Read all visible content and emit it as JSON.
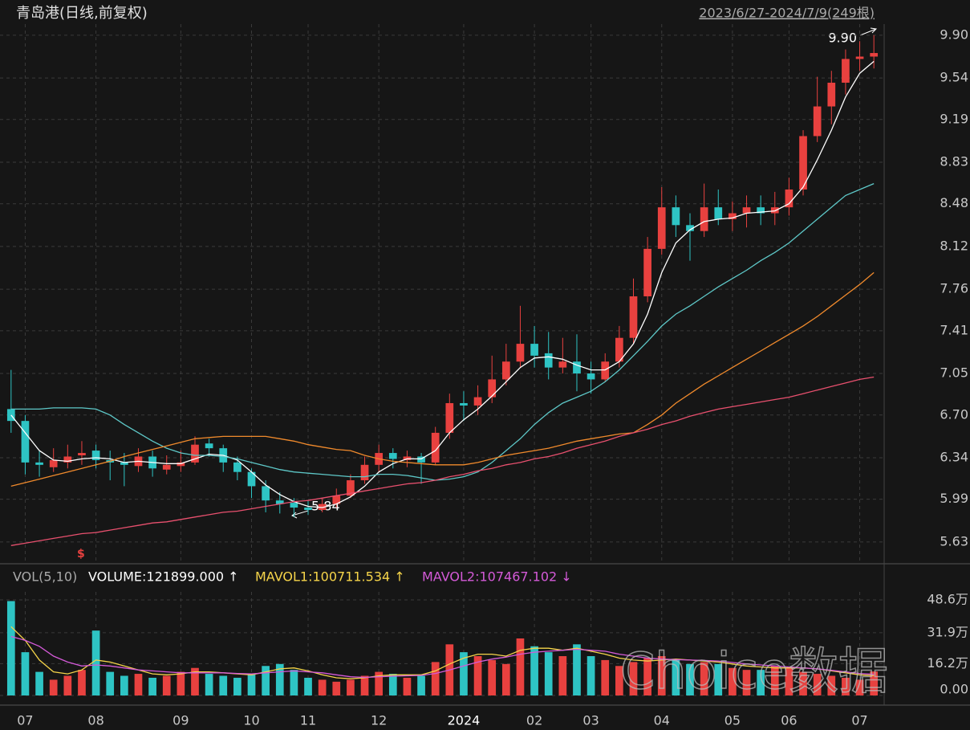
{
  "chart_data": [
    {
      "type": "candlestick",
      "title": "青岛港(日线,前复权)",
      "subtitle": "2023/6/27-2024/7/9(249根)",
      "categories": [
        null,
        "07",
        null,
        null,
        null,
        null,
        "08",
        null,
        null,
        null,
        null,
        null,
        "09",
        null,
        null,
        null,
        null,
        "10",
        null,
        null,
        null,
        "11",
        null,
        null,
        null,
        null,
        "12",
        null,
        null,
        null,
        null,
        null,
        "2024",
        null,
        null,
        null,
        null,
        "02",
        null,
        null,
        null,
        "03",
        null,
        null,
        null,
        null,
        "04",
        null,
        null,
        null,
        null,
        "05",
        null,
        null,
        null,
        "06",
        null,
        null,
        null,
        null,
        "07",
        null
      ],
      "open": [
        6.75,
        6.65,
        6.3,
        6.26,
        6.3,
        6.36,
        6.4,
        6.32,
        6.3,
        6.27,
        6.35,
        6.24,
        6.27,
        6.3,
        6.46,
        6.42,
        6.3,
        6.22,
        6.1,
        5.98,
        5.96,
        5.92,
        5.9,
        5.95,
        6.02,
        6.15,
        6.28,
        6.38,
        6.32,
        6.35,
        6.3,
        6.55,
        6.8,
        6.78,
        6.85,
        7.0,
        7.15,
        7.3,
        7.22,
        7.1,
        7.15,
        7.05,
        7.0,
        7.15,
        7.35,
        7.7,
        8.1,
        8.45,
        8.3,
        8.25,
        8.45,
        8.35,
        8.4,
        8.45,
        8.4,
        8.45,
        8.6,
        9.05,
        9.3,
        9.5,
        9.7,
        9.72
      ],
      "high": [
        7.08,
        6.7,
        6.4,
        6.42,
        6.45,
        6.48,
        6.45,
        6.4,
        6.38,
        6.42,
        6.4,
        6.36,
        6.4,
        6.52,
        6.5,
        6.45,
        6.35,
        6.25,
        6.15,
        6.05,
        6.0,
        5.98,
        6.0,
        6.08,
        6.2,
        6.35,
        6.45,
        6.42,
        6.4,
        6.38,
        6.6,
        6.88,
        6.9,
        6.95,
        7.2,
        7.3,
        7.62,
        7.45,
        7.4,
        7.35,
        7.38,
        7.15,
        7.22,
        7.45,
        7.85,
        8.2,
        8.62,
        8.55,
        8.4,
        8.65,
        8.6,
        8.5,
        8.55,
        8.55,
        8.58,
        8.7,
        9.1,
        9.55,
        9.6,
        9.78,
        9.85,
        9.9
      ],
      "low": [
        6.55,
        6.2,
        6.18,
        6.22,
        6.25,
        6.28,
        6.25,
        6.15,
        6.1,
        6.22,
        6.18,
        6.2,
        6.22,
        6.28,
        6.35,
        6.22,
        6.15,
        6.0,
        5.88,
        5.87,
        5.84,
        5.86,
        5.88,
        5.92,
        6.0,
        6.12,
        6.22,
        6.25,
        6.26,
        6.12,
        6.28,
        6.5,
        6.65,
        6.7,
        6.8,
        6.95,
        7.1,
        7.1,
        7.0,
        7.05,
        6.9,
        6.88,
        6.98,
        7.1,
        7.3,
        7.65,
        8.05,
        8.2,
        8.0,
        8.2,
        8.3,
        8.25,
        8.28,
        8.3,
        8.3,
        8.38,
        8.55,
        9.0,
        9.15,
        9.4,
        9.6,
        9.62
      ],
      "close": [
        6.65,
        6.3,
        6.28,
        6.32,
        6.35,
        6.38,
        6.32,
        6.3,
        6.28,
        6.35,
        6.25,
        6.28,
        6.3,
        6.45,
        6.42,
        6.3,
        6.22,
        6.1,
        5.98,
        5.95,
        5.92,
        5.9,
        5.95,
        6.02,
        6.15,
        6.28,
        6.38,
        6.33,
        6.35,
        6.3,
        6.55,
        6.8,
        6.78,
        6.85,
        7.0,
        7.15,
        7.3,
        7.2,
        7.1,
        7.15,
        7.05,
        7.0,
        7.15,
        7.35,
        7.7,
        8.1,
        8.45,
        8.3,
        8.25,
        8.45,
        8.35,
        8.4,
        8.45,
        8.4,
        8.45,
        8.6,
        9.05,
        9.3,
        9.5,
        9.7,
        9.72,
        9.75
      ],
      "up_color": "#e8413f",
      "down_color": "#2ec4c4",
      "ylim": [
        5.46,
        9.96
      ],
      "yticks": [
        {
          "value": 9.9,
          "label": "9.90"
        },
        9.54,
        9.19,
        8.83,
        8.48,
        8.12,
        7.76,
        7.41,
        7.05,
        {
          "value": 6.7,
          "label": "6.70"
        },
        6.34,
        5.99,
        5.63
      ],
      "grid": true,
      "ma_lines": [
        {
          "color": "#ffffff",
          "values": [
            6.7,
            6.55,
            6.4,
            6.32,
            6.31,
            6.33,
            6.34,
            6.33,
            6.3,
            6.31,
            6.3,
            6.29,
            6.29,
            6.33,
            6.37,
            6.36,
            6.32,
            6.22,
            6.11,
            6.03,
            5.97,
            5.93,
            5.92,
            5.95,
            6.01,
            6.1,
            6.22,
            6.29,
            6.33,
            6.33,
            6.4,
            6.55,
            6.66,
            6.75,
            6.86,
            6.98,
            7.1,
            7.18,
            7.19,
            7.17,
            7.12,
            7.08,
            7.08,
            7.15,
            7.3,
            7.55,
            7.9,
            8.15,
            8.26,
            8.33,
            8.35,
            8.36,
            8.4,
            8.41,
            8.42,
            8.48,
            8.62,
            8.85,
            9.1,
            9.38,
            9.58,
            9.68
          ]
        },
        {
          "color": "#5ec8c8",
          "values": [
            6.75,
            6.75,
            6.75,
            6.76,
            6.76,
            6.76,
            6.75,
            6.7,
            6.62,
            6.55,
            6.48,
            6.42,
            6.38,
            6.36,
            6.36,
            6.35,
            6.33,
            6.3,
            6.27,
            6.24,
            6.22,
            6.21,
            6.2,
            6.19,
            6.18,
            6.18,
            6.2,
            6.2,
            6.19,
            6.17,
            6.15,
            6.16,
            6.18,
            6.22,
            6.3,
            6.4,
            6.5,
            6.62,
            6.72,
            6.8,
            6.85,
            6.9,
            6.98,
            7.08,
            7.2,
            7.32,
            7.45,
            7.55,
            7.62,
            7.7,
            7.78,
            7.85,
            7.92,
            8.0,
            8.07,
            8.15,
            8.25,
            8.35,
            8.45,
            8.55,
            8.6,
            8.65
          ]
        },
        {
          "color": "#f08a2c",
          "values": [
            6.1,
            6.13,
            6.16,
            6.19,
            6.22,
            6.25,
            6.28,
            6.31,
            6.35,
            6.38,
            6.41,
            6.44,
            6.47,
            6.5,
            6.51,
            6.52,
            6.52,
            6.52,
            6.52,
            6.5,
            6.48,
            6.45,
            6.43,
            6.41,
            6.4,
            6.36,
            6.33,
            6.31,
            6.3,
            6.29,
            6.28,
            6.28,
            6.28,
            6.3,
            6.33,
            6.36,
            6.38,
            6.4,
            6.42,
            6.45,
            6.48,
            6.5,
            6.52,
            6.54,
            6.55,
            6.62,
            6.7,
            6.8,
            6.88,
            6.96,
            7.03,
            7.1,
            7.17,
            7.24,
            7.31,
            7.38,
            7.45,
            7.53,
            7.62,
            7.71,
            7.8,
            7.9
          ]
        },
        {
          "color": "#e8506e",
          "values": [
            5.6,
            5.62,
            5.64,
            5.66,
            5.68,
            5.7,
            5.71,
            5.73,
            5.75,
            5.77,
            5.79,
            5.8,
            5.82,
            5.84,
            5.86,
            5.88,
            5.89,
            5.91,
            5.93,
            5.95,
            5.97,
            5.98,
            6.0,
            6.02,
            6.04,
            6.06,
            6.08,
            6.1,
            6.12,
            6.13,
            6.15,
            6.18,
            6.2,
            6.23,
            6.25,
            6.28,
            6.3,
            6.33,
            6.35,
            6.38,
            6.42,
            6.45,
            6.48,
            6.52,
            6.55,
            6.58,
            6.62,
            6.65,
            6.69,
            6.72,
            6.75,
            6.77,
            6.79,
            6.81,
            6.83,
            6.85,
            6.88,
            6.91,
            6.94,
            6.97,
            7.0,
            7.02
          ]
        }
      ],
      "high_label": "9.90",
      "low_label": "5.84",
      "watermark": "Choice数据"
    },
    {
      "type": "bar",
      "title": "VOL(5,10)",
      "header": [
        "VOLUME:121899.000 ↑",
        "MAVOL1:100711.534 ↑",
        "MAVOL2:107467.102 ↓"
      ],
      "values": [
        480000,
        220000,
        120000,
        80000,
        100000,
        130000,
        330000,
        120000,
        100000,
        110000,
        90000,
        100000,
        120000,
        140000,
        110000,
        100000,
        90000,
        110000,
        150000,
        160000,
        130000,
        90000,
        80000,
        70000,
        80000,
        100000,
        120000,
        110000,
        90000,
        100000,
        170000,
        260000,
        220000,
        200000,
        180000,
        160000,
        290000,
        250000,
        220000,
        200000,
        260000,
        200000,
        180000,
        150000,
        170000,
        190000,
        200000,
        180000,
        160000,
        170000,
        160000,
        140000,
        130000,
        130000,
        150000,
        140000,
        120000,
        110000,
        100000,
        90000,
        80000,
        121899
      ],
      "ylim": [
        0,
        526800
      ],
      "yticks": [
        {
          "value": 486000,
          "label": "48.6万"
        },
        {
          "value": 319000,
          "label": "31.9万"
        },
        {
          "value": 162000,
          "label": "16.2万"
        },
        {
          "value": 0,
          "label": "0.00"
        }
      ],
      "series": [
        {
          "color": "#f5d44a",
          "values": [
            350000,
            280000,
            180000,
            120000,
            110000,
            130000,
            180000,
            170000,
            150000,
            130000,
            110000,
            105000,
            110000,
            120000,
            120000,
            115000,
            110000,
            105000,
            120000,
            135000,
            140000,
            125000,
            105000,
            90000,
            85000,
            90000,
            100000,
            105000,
            105000,
            105000,
            125000,
            160000,
            190000,
            210000,
            210000,
            200000,
            230000,
            240000,
            240000,
            230000,
            240000,
            225000,
            210000,
            190000,
            180000,
            175000,
            180000,
            185000,
            180000,
            175000,
            170000,
            160000,
            150000,
            145000,
            140000,
            140000,
            140000,
            135000,
            125000,
            115000,
            105000,
            100711.534
          ]
        },
        {
          "color": "#d45ad8",
          "values": [
            300000,
            280000,
            250000,
            200000,
            170000,
            150000,
            155000,
            150000,
            140000,
            130000,
            125000,
            120000,
            115000,
            115000,
            115000,
            115000,
            112000,
            110000,
            115000,
            120000,
            125000,
            120000,
            115000,
            105000,
            95000,
            92000,
            95000,
            98000,
            100000,
            102000,
            112000,
            130000,
            150000,
            170000,
            185000,
            195000,
            210000,
            220000,
            225000,
            230000,
            235000,
            230000,
            225000,
            210000,
            200000,
            190000,
            185000,
            182000,
            180000,
            178000,
            175000,
            168000,
            160000,
            155000,
            150000,
            145000,
            140000,
            135000,
            128000,
            120000,
            112000,
            107467.102
          ]
        }
      ]
    }
  ]
}
